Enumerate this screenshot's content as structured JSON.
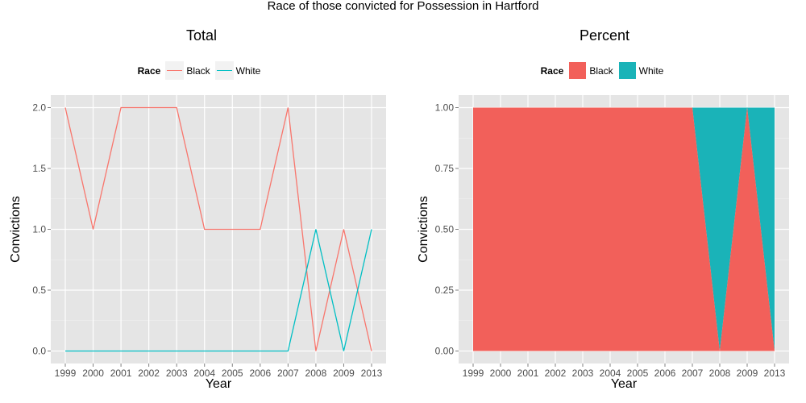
{
  "main_title": "Race of those convicted for Possession in Hartford",
  "legend_title": "Race",
  "colors": {
    "Black": "#F8766D",
    "White": "#00BFC4",
    "BlackFill": "#F2605A",
    "WhiteFill": "#1AB3B8"
  },
  "chart_data": [
    {
      "type": "line",
      "title": "Total",
      "xlabel": "Year",
      "ylabel": "Convictions",
      "categories": [
        "1999",
        "2000",
        "2001",
        "2002",
        "2003",
        "2004",
        "2005",
        "2006",
        "2007",
        "2008",
        "2009",
        "2013"
      ],
      "ylim": [
        0,
        2
      ],
      "yticks": [
        "0.0",
        "0.5",
        "1.0",
        "1.5",
        "2.0"
      ],
      "series": [
        {
          "name": "Black",
          "values": [
            2,
            1,
            2,
            2,
            2,
            1,
            1,
            1,
            2,
            0,
            1,
            0
          ]
        },
        {
          "name": "White",
          "values": [
            0,
            0,
            0,
            0,
            0,
            0,
            0,
            0,
            0,
            1,
            0,
            1
          ]
        }
      ]
    },
    {
      "type": "area",
      "title": "Percent",
      "xlabel": "Year",
      "ylabel": "Convictions",
      "categories": [
        "1999",
        "2000",
        "2001",
        "2002",
        "2003",
        "2004",
        "2005",
        "2006",
        "2007",
        "2008",
        "2009",
        "2013"
      ],
      "ylim": [
        0,
        1
      ],
      "yticks": [
        "0.00",
        "0.25",
        "0.50",
        "0.75",
        "1.00"
      ],
      "series": [
        {
          "name": "Black",
          "values": [
            1,
            1,
            1,
            1,
            1,
            1,
            1,
            1,
            1,
            0,
            1,
            0
          ]
        },
        {
          "name": "White",
          "values": [
            0,
            0,
            0,
            0,
            0,
            0,
            0,
            0,
            0,
            1,
            0,
            1
          ]
        }
      ]
    }
  ]
}
